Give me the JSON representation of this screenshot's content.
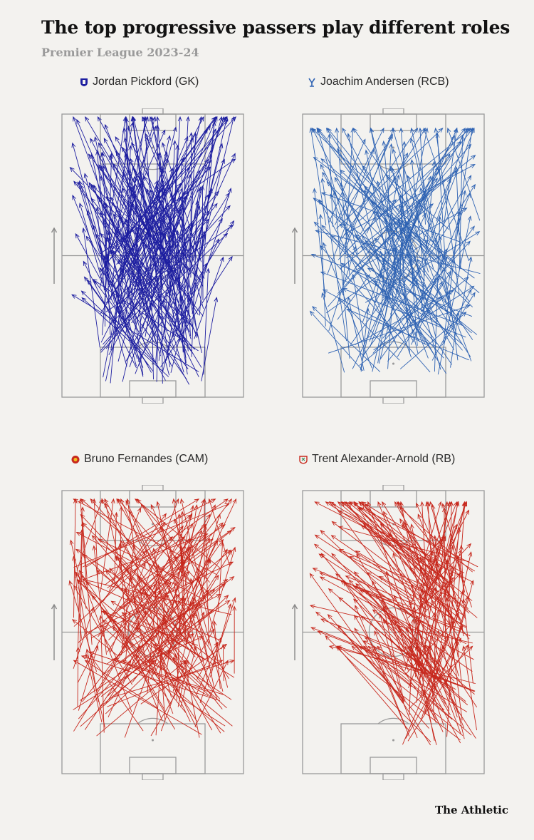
{
  "title": "The top progressive passers play different roles",
  "subtitle": "Premier League 2023-24",
  "brand": "The Athletic",
  "colors": {
    "background": "#f3f2ef",
    "pitch_lines": "#9a9a9a"
  },
  "chart_data": [
    {
      "type": "scatter",
      "title": "Jordan Pickford (GK)",
      "player": "Jordan Pickford",
      "role": "GK",
      "club_icon": "everton-crest-icon",
      "color": "#1d1ea0",
      "n_passes": 230,
      "origin_zone": "own-half-deep",
      "xlim": [
        0,
        100
      ],
      "ylim": [
        0,
        100
      ],
      "note": "Pass arrows from start to end point; pitch coordinates 0-100, attacking upward"
    },
    {
      "type": "scatter",
      "title": "Joachim Andersen (RCB)",
      "player": "Joachim Andersen",
      "role": "RCB",
      "club_icon": "crystal-palace-crest-icon",
      "color": "#2f63b3",
      "n_passes": 190,
      "origin_zone": "own-half-right",
      "xlim": [
        0,
        100
      ],
      "ylim": [
        0,
        100
      ],
      "note": "Pass arrows from start to end point; pitch coordinates 0-100, attacking upward"
    },
    {
      "type": "scatter",
      "title": "Bruno Fernandes (CAM)",
      "player": "Bruno Fernandes",
      "role": "CAM",
      "club_icon": "man-utd-crest-icon",
      "color": "#c7281d",
      "n_passes": 220,
      "origin_zone": "midfield",
      "xlim": [
        0,
        100
      ],
      "ylim": [
        0,
        100
      ],
      "note": "Pass arrows from start to end point; pitch coordinates 0-100, attacking upward"
    },
    {
      "type": "scatter",
      "title": "Trent Alexander-Arnold (RB)",
      "player": "Trent Alexander-Arnold",
      "role": "RB",
      "club_icon": "liverpool-crest-icon",
      "color": "#c7281d",
      "n_passes": 200,
      "origin_zone": "right-flank",
      "xlim": [
        0,
        100
      ],
      "ylim": [
        0,
        100
      ],
      "note": "Pass arrows from start to end point; pitch coordinates 0-100, attacking upward"
    }
  ]
}
